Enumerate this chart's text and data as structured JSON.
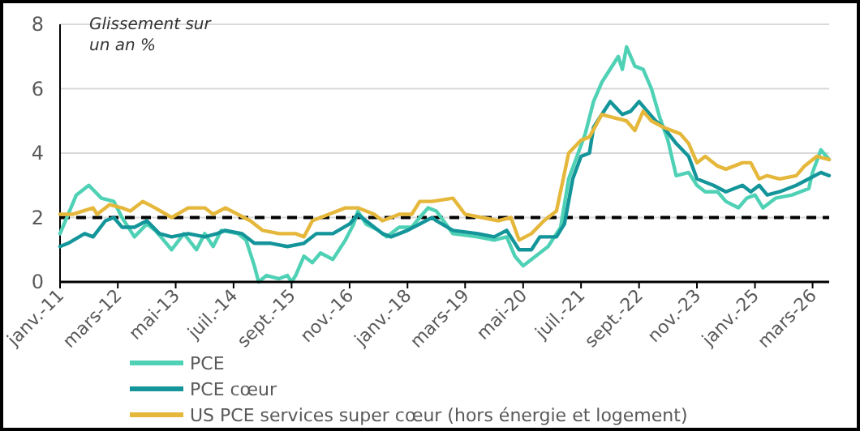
{
  "chart_data": {
    "type": "line",
    "ylabel": "Glissement sur un an %",
    "xlim": [
      "2011-01",
      "2026-07"
    ],
    "ylim": [
      0,
      8
    ],
    "yticks": [
      0,
      2,
      4,
      6,
      8
    ],
    "xticks": [
      {
        "value": "2011-01",
        "label": "janv.-11"
      },
      {
        "value": "2012-03",
        "label": "mars-12"
      },
      {
        "value": "2013-05",
        "label": "mai-13"
      },
      {
        "value": "2014-07",
        "label": "juil.-14"
      },
      {
        "value": "2015-09",
        "label": "sept.-15"
      },
      {
        "value": "2016-11",
        "label": "nov.-16"
      },
      {
        "value": "2018-01",
        "label": "janv.-18"
      },
      {
        "value": "2019-03",
        "label": "mars-19"
      },
      {
        "value": "2020-05",
        "label": "mai-20"
      },
      {
        "value": "2021-07",
        "label": "juil.-21"
      },
      {
        "value": "2022-09",
        "label": "sept.-22"
      },
      {
        "value": "2023-11",
        "label": "nov.-23"
      },
      {
        "value": "2025-01",
        "label": "janv.-25"
      },
      {
        "value": "2026-03",
        "label": "mars-26"
      }
    ],
    "grid": "y",
    "legend": "bottom",
    "line_style": "solid",
    "ref_lines": [
      {
        "axis": "y",
        "value": 2,
        "color": "#000000",
        "line_style": "dashed"
      }
    ],
    "series": [
      {
        "name": "PCE",
        "color": "#4fd1b5",
        "x": [
          "2011-01",
          "2011-05",
          "2011-08",
          "2011-11",
          "2012-02",
          "2012-04",
          "2012-06",
          "2012-07",
          "2012-10",
          "2012-12",
          "2013-02",
          "2013-04",
          "2013-07",
          "2013-10",
          "2013-12",
          "2014-02",
          "2014-04",
          "2014-08",
          "2014-10",
          "2014-12",
          "2015-01",
          "2015-03",
          "2015-06",
          "2015-08",
          "2015-09",
          "2015-10",
          "2015-12",
          "2016-02",
          "2016-04",
          "2016-07",
          "2016-10",
          "2016-12",
          "2017-01",
          "2017-03",
          "2017-06",
          "2017-08",
          "2017-11",
          "2018-02",
          "2018-04",
          "2018-06",
          "2018-08",
          "2018-12",
          "2019-06",
          "2019-10",
          "2020-01",
          "2020-03",
          "2020-05",
          "2020-07",
          "2020-11",
          "2021-02",
          "2021-04",
          "2021-06",
          "2021-08",
          "2021-10",
          "2021-12",
          "2022-04",
          "2022-05",
          "2022-06",
          "2022-08",
          "2022-10",
          "2022-12",
          "2023-02",
          "2023-04",
          "2023-06",
          "2023-09",
          "2023-11",
          "2024-01",
          "2024-04",
          "2024-06",
          "2024-09",
          "2024-11",
          "2025-01",
          "2025-03",
          "2025-06",
          "2025-10",
          "2026-02",
          "2026-03",
          "2026-05",
          "2026-07"
        ],
        "values": [
          1.5,
          2.7,
          3.0,
          2.6,
          2.5,
          2.0,
          1.6,
          1.4,
          1.8,
          1.6,
          1.3,
          1.0,
          1.5,
          1.0,
          1.5,
          1.1,
          1.6,
          1.5,
          1.3,
          0.5,
          0.0,
          0.2,
          0.1,
          0.2,
          0.0,
          0.2,
          0.8,
          0.6,
          0.9,
          0.7,
          1.3,
          1.8,
          2.2,
          1.8,
          1.6,
          1.4,
          1.7,
          1.7,
          2.0,
          2.3,
          2.2,
          1.5,
          1.4,
          1.3,
          1.4,
          0.8,
          0.5,
          0.7,
          1.1,
          1.7,
          3.2,
          3.9,
          4.6,
          5.6,
          6.2,
          7.0,
          6.6,
          7.3,
          6.7,
          6.6,
          6.0,
          5.1,
          4.4,
          3.3,
          3.4,
          3.0,
          2.8,
          2.8,
          2.5,
          2.3,
          2.6,
          2.7,
          2.3,
          2.6,
          2.7,
          2.9,
          3.4,
          4.1,
          3.8
        ]
      },
      {
        "name": "PCE cœur",
        "color": "#13959a",
        "x": [
          "2011-01",
          "2011-03",
          "2011-07",
          "2011-09",
          "2011-12",
          "2012-02",
          "2012-04",
          "2012-07",
          "2012-10",
          "2013-01",
          "2013-04",
          "2013-08",
          "2013-12",
          "2014-03",
          "2014-05",
          "2014-09",
          "2014-12",
          "2015-04",
          "2015-08",
          "2015-12",
          "2016-03",
          "2016-07",
          "2016-11",
          "2017-01",
          "2017-03",
          "2017-07",
          "2017-09",
          "2018-01",
          "2018-04",
          "2018-07",
          "2018-08",
          "2018-12",
          "2019-06",
          "2019-10",
          "2020-01",
          "2020-04",
          "2020-07",
          "2020-09",
          "2021-01",
          "2021-03",
          "2021-05",
          "2021-07",
          "2021-09",
          "2021-10",
          "2021-12",
          "2022-02",
          "2022-05",
          "2022-07",
          "2022-09",
          "2022-11",
          "2023-01",
          "2023-03",
          "2023-06",
          "2023-09",
          "2023-11",
          "2024-03",
          "2024-06",
          "2024-10",
          "2024-12",
          "2025-02",
          "2025-04",
          "2025-07",
          "2025-11",
          "2026-02",
          "2026-05",
          "2026-07"
        ],
        "values": [
          1.1,
          1.2,
          1.5,
          1.4,
          1.9,
          2.0,
          1.7,
          1.7,
          1.9,
          1.5,
          1.4,
          1.5,
          1.4,
          1.5,
          1.6,
          1.5,
          1.2,
          1.2,
          1.1,
          1.2,
          1.5,
          1.5,
          1.8,
          2.1,
          1.9,
          1.5,
          1.4,
          1.6,
          1.8,
          2.0,
          1.9,
          1.6,
          1.5,
          1.4,
          1.6,
          1.0,
          1.0,
          1.4,
          1.4,
          1.8,
          3.2,
          3.9,
          4.0,
          4.8,
          5.2,
          5.6,
          5.2,
          5.3,
          5.6,
          5.3,
          5.0,
          4.8,
          4.3,
          3.9,
          3.2,
          3.0,
          2.8,
          3.0,
          2.8,
          3.0,
          2.7,
          2.8,
          3.0,
          3.2,
          3.4,
          3.3
        ]
      },
      {
        "name": "US PCE services super cœur (hors énergie et logement)",
        "color": "#e5b73b",
        "x": [
          "2011-01",
          "2011-04",
          "2011-09",
          "2011-10",
          "2012-01",
          "2012-04",
          "2012-06",
          "2012-09",
          "2012-12",
          "2013-04",
          "2013-08",
          "2013-12",
          "2014-02",
          "2014-05",
          "2014-08",
          "2014-11",
          "2015-02",
          "2015-06",
          "2015-10",
          "2015-12",
          "2016-02",
          "2016-06",
          "2016-10",
          "2017-01",
          "2017-05",
          "2017-07",
          "2017-11",
          "2018-02",
          "2018-04",
          "2018-07",
          "2018-12",
          "2019-03",
          "2019-07",
          "2019-11",
          "2020-02",
          "2020-04",
          "2020-07",
          "2020-10",
          "2021-01",
          "2021-04",
          "2021-07",
          "2021-09",
          "2021-12",
          "2022-03",
          "2022-06",
          "2022-08",
          "2022-10",
          "2022-12",
          "2023-03",
          "2023-07",
          "2023-09",
          "2023-11",
          "2024-01",
          "2024-04",
          "2024-06",
          "2024-10",
          "2024-12",
          "2025-02",
          "2025-04",
          "2025-07",
          "2025-11",
          "2026-01",
          "2026-04",
          "2026-07"
        ],
        "values": [
          2.1,
          2.1,
          2.3,
          2.1,
          2.4,
          2.3,
          2.2,
          2.5,
          2.3,
          2.0,
          2.3,
          2.3,
          2.1,
          2.3,
          2.1,
          1.9,
          1.6,
          1.5,
          1.5,
          1.4,
          1.9,
          2.1,
          2.3,
          2.3,
          2.1,
          1.9,
          2.1,
          2.1,
          2.5,
          2.5,
          2.6,
          2.1,
          2.0,
          1.9,
          2.0,
          1.3,
          1.5,
          1.9,
          2.2,
          4.0,
          4.4,
          4.5,
          5.2,
          5.1,
          5.0,
          4.7,
          5.3,
          5.0,
          4.8,
          4.6,
          4.3,
          3.7,
          3.9,
          3.6,
          3.5,
          3.7,
          3.7,
          3.2,
          3.3,
          3.2,
          3.3,
          3.6,
          3.9,
          3.8
        ]
      }
    ]
  }
}
